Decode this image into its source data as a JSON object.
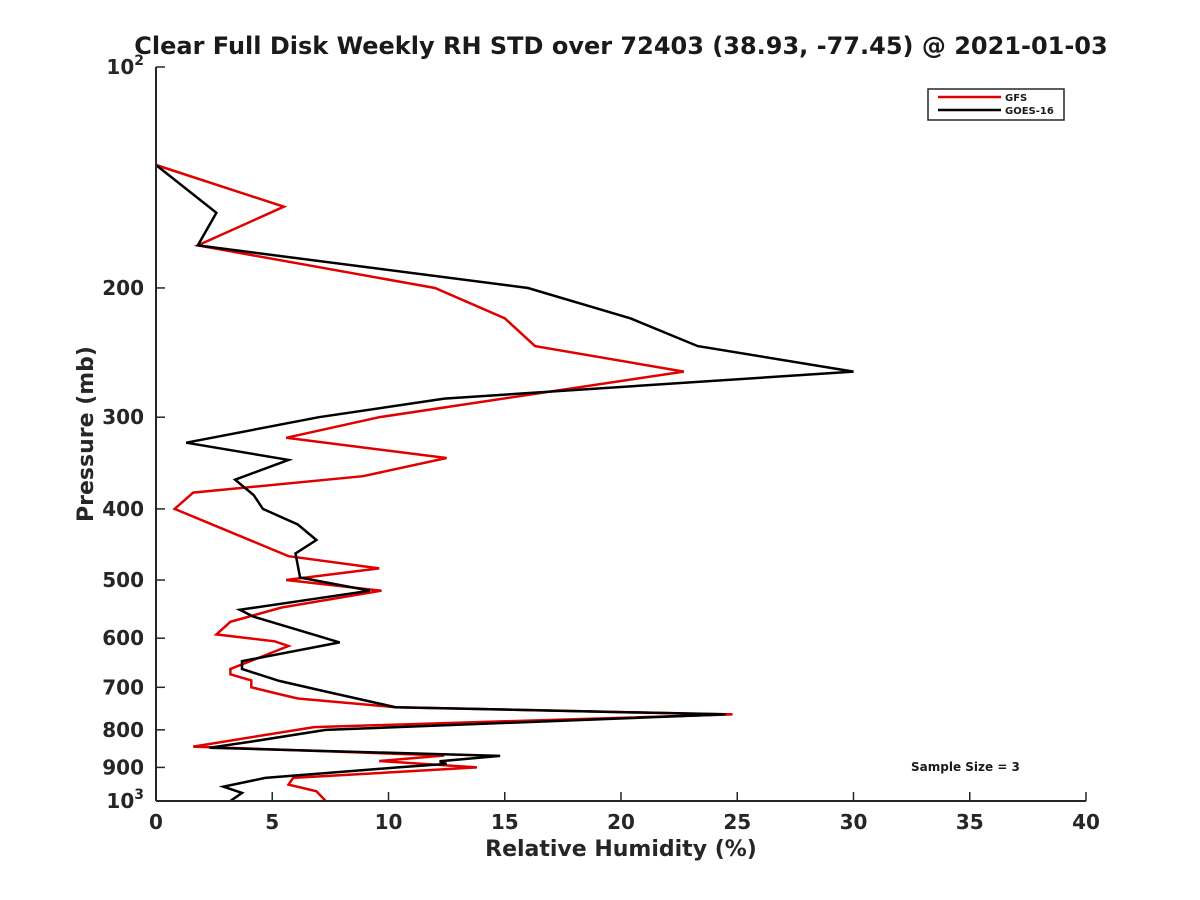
{
  "chart_data": {
    "type": "line",
    "title": "Clear Full Disk Weekly RH STD over 72403 (38.93, -77.45) @ 2021-01-03",
    "xlabel": "Relative Humidity (%)",
    "ylabel": "Pressure (mb)",
    "xlim": [
      0,
      40
    ],
    "ylim": [
      100,
      1000
    ],
    "y_scale": "log",
    "y_reversed": true,
    "x_ticks": [
      "0",
      "5",
      "10",
      "15",
      "20",
      "25",
      "30",
      "35",
      "40"
    ],
    "y_ticks": [
      {
        "value": 100,
        "base": "10",
        "exp": "2"
      },
      {
        "value": 200,
        "label": "200"
      },
      {
        "value": 300,
        "label": "300"
      },
      {
        "value": 400,
        "label": "400"
      },
      {
        "value": 500,
        "label": "500"
      },
      {
        "value": 600,
        "label": "600"
      },
      {
        "value": 700,
        "label": "700"
      },
      {
        "value": 800,
        "label": "800"
      },
      {
        "value": 900,
        "label": "900"
      },
      {
        "value": 1000,
        "base": "10",
        "exp": "3"
      }
    ],
    "legend": {
      "position": "top-right",
      "entries": [
        "GFS",
        "GOES-16"
      ]
    },
    "annotation": "Sample Size = 3",
    "series": [
      {
        "name": "GFS",
        "color": "#e00000",
        "points": [
          [
            0.0,
            136
          ],
          [
            5.5,
            155
          ],
          [
            1.8,
            175
          ],
          [
            12.0,
            200
          ],
          [
            15.0,
            220
          ],
          [
            16.3,
            240
          ],
          [
            22.7,
            260
          ],
          [
            9.6,
            300
          ],
          [
            5.6,
            320
          ],
          [
            12.5,
            341
          ],
          [
            8.9,
            361
          ],
          [
            1.6,
            380
          ],
          [
            0.8,
            400
          ],
          [
            2.8,
            425
          ],
          [
            4.7,
            450
          ],
          [
            5.7,
            464
          ],
          [
            9.6,
            482
          ],
          [
            5.6,
            500
          ],
          [
            9.7,
            517
          ],
          [
            5.4,
            545
          ],
          [
            3.2,
            570
          ],
          [
            2.6,
            593
          ],
          [
            5.1,
            606
          ],
          [
            5.7,
            615
          ],
          [
            3.2,
            661
          ],
          [
            3.2,
            672
          ],
          [
            4.1,
            685
          ],
          [
            4.1,
            700
          ],
          [
            5.3,
            715
          ],
          [
            6.1,
            725
          ],
          [
            10.3,
            745
          ],
          [
            24.8,
            762
          ],
          [
            6.8,
            793
          ],
          [
            1.6,
            843
          ],
          [
            12.4,
            867
          ],
          [
            9.6,
            882
          ],
          [
            13.8,
            900
          ],
          [
            5.9,
            930
          ],
          [
            5.7,
            950
          ],
          [
            6.9,
            970
          ],
          [
            7.3,
            1000
          ]
        ]
      },
      {
        "name": "GOES-16",
        "color": "#000000",
        "points": [
          [
            0.0,
            136
          ],
          [
            2.6,
            158
          ],
          [
            1.8,
            175
          ],
          [
            16.0,
            200
          ],
          [
            20.4,
            220
          ],
          [
            23.3,
            240
          ],
          [
            30.0,
            260
          ],
          [
            12.4,
            283
          ],
          [
            7.0,
            300
          ],
          [
            1.3,
            325
          ],
          [
            5.7,
            343
          ],
          [
            3.4,
            365
          ],
          [
            4.2,
            383
          ],
          [
            4.6,
            400
          ],
          [
            6.1,
            420
          ],
          [
            6.9,
            441
          ],
          [
            6.0,
            460
          ],
          [
            6.2,
            496
          ],
          [
            9.2,
            517
          ],
          [
            3.6,
            549
          ],
          [
            4.2,
            561
          ],
          [
            7.9,
            608
          ],
          [
            3.7,
            645
          ],
          [
            3.7,
            661
          ],
          [
            5.3,
            686
          ],
          [
            7.1,
            707
          ],
          [
            10.3,
            745
          ],
          [
            24.5,
            762
          ],
          [
            7.3,
            800
          ],
          [
            4.1,
            830
          ],
          [
            2.3,
            846
          ],
          [
            14.8,
            868
          ],
          [
            12.2,
            883
          ],
          [
            12.5,
            890
          ],
          [
            10.4,
            900
          ],
          [
            4.7,
            930
          ],
          [
            2.9,
            956
          ],
          [
            3.7,
            975
          ],
          [
            3.2,
            1000
          ]
        ]
      }
    ]
  }
}
